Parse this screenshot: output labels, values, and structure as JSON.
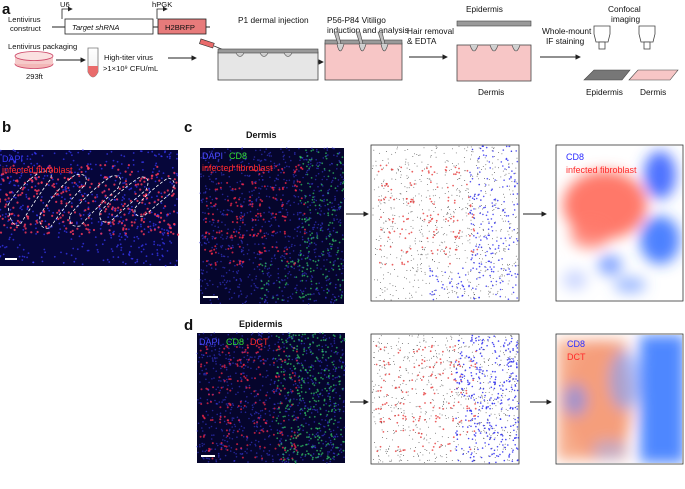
{
  "panel_a": {
    "letter": "a",
    "u6": "U6",
    "hpgk": "hPGK",
    "lentivirus_construct_l1": "Lentivirus",
    "lentivirus_construct_l2": "construct",
    "target_shrna": "Target shRNA",
    "h2brfp": "H2BRFP",
    "lentivirus_packaging": "Lentivirus packaging",
    "cell_line": "293ft",
    "virus_l1": "High-titer virus",
    "virus_l2": ">1×10⁹ CFU/mL",
    "step_injection": "P1 dermal injection",
    "step_vitiligo_l1": "P56-P84 Vitiligo",
    "step_vitiligo_l2": "induction and analysis",
    "step_hair_l1": "Hair removal",
    "step_hair_l2": "& EDTA",
    "epidermis_label": "Epidermis",
    "dermis_label": "Dermis",
    "step_wholemount_l1": "Whole-mount",
    "step_wholemount_l2": "IF staining",
    "confocal_l1": "Confocal",
    "confocal_l2": "imaging",
    "out_epidermis": "Epidermis",
    "out_dermis": "Dermis"
  },
  "panel_b": {
    "letter": "b",
    "dapi": "DAPI",
    "fibroblast": "infected fibroblast"
  },
  "panel_c": {
    "letter": "c",
    "title": "Dermis",
    "dapi": "DAPI",
    "cd8": "CD8",
    "fibroblast": "infected fibroblast",
    "map_cd8": "CD8",
    "map_fibroblast": "infected fibroblast"
  },
  "panel_d": {
    "letter": "d",
    "title": "Epidermis",
    "dapi": "DAPI",
    "cd8": "CD8",
    "dct": "DCT",
    "map_cd8": "CD8",
    "map_dct": "DCT"
  },
  "colors": {
    "dapi_blue": "#2a2aff",
    "cd8_green": "#33dd33",
    "fibroblast_red": "#ff2a2a",
    "h2brfp_fill": "#e77b7b",
    "tissue_pink": "#f7c6c6",
    "tissue_grey": "#d9d9d9"
  }
}
